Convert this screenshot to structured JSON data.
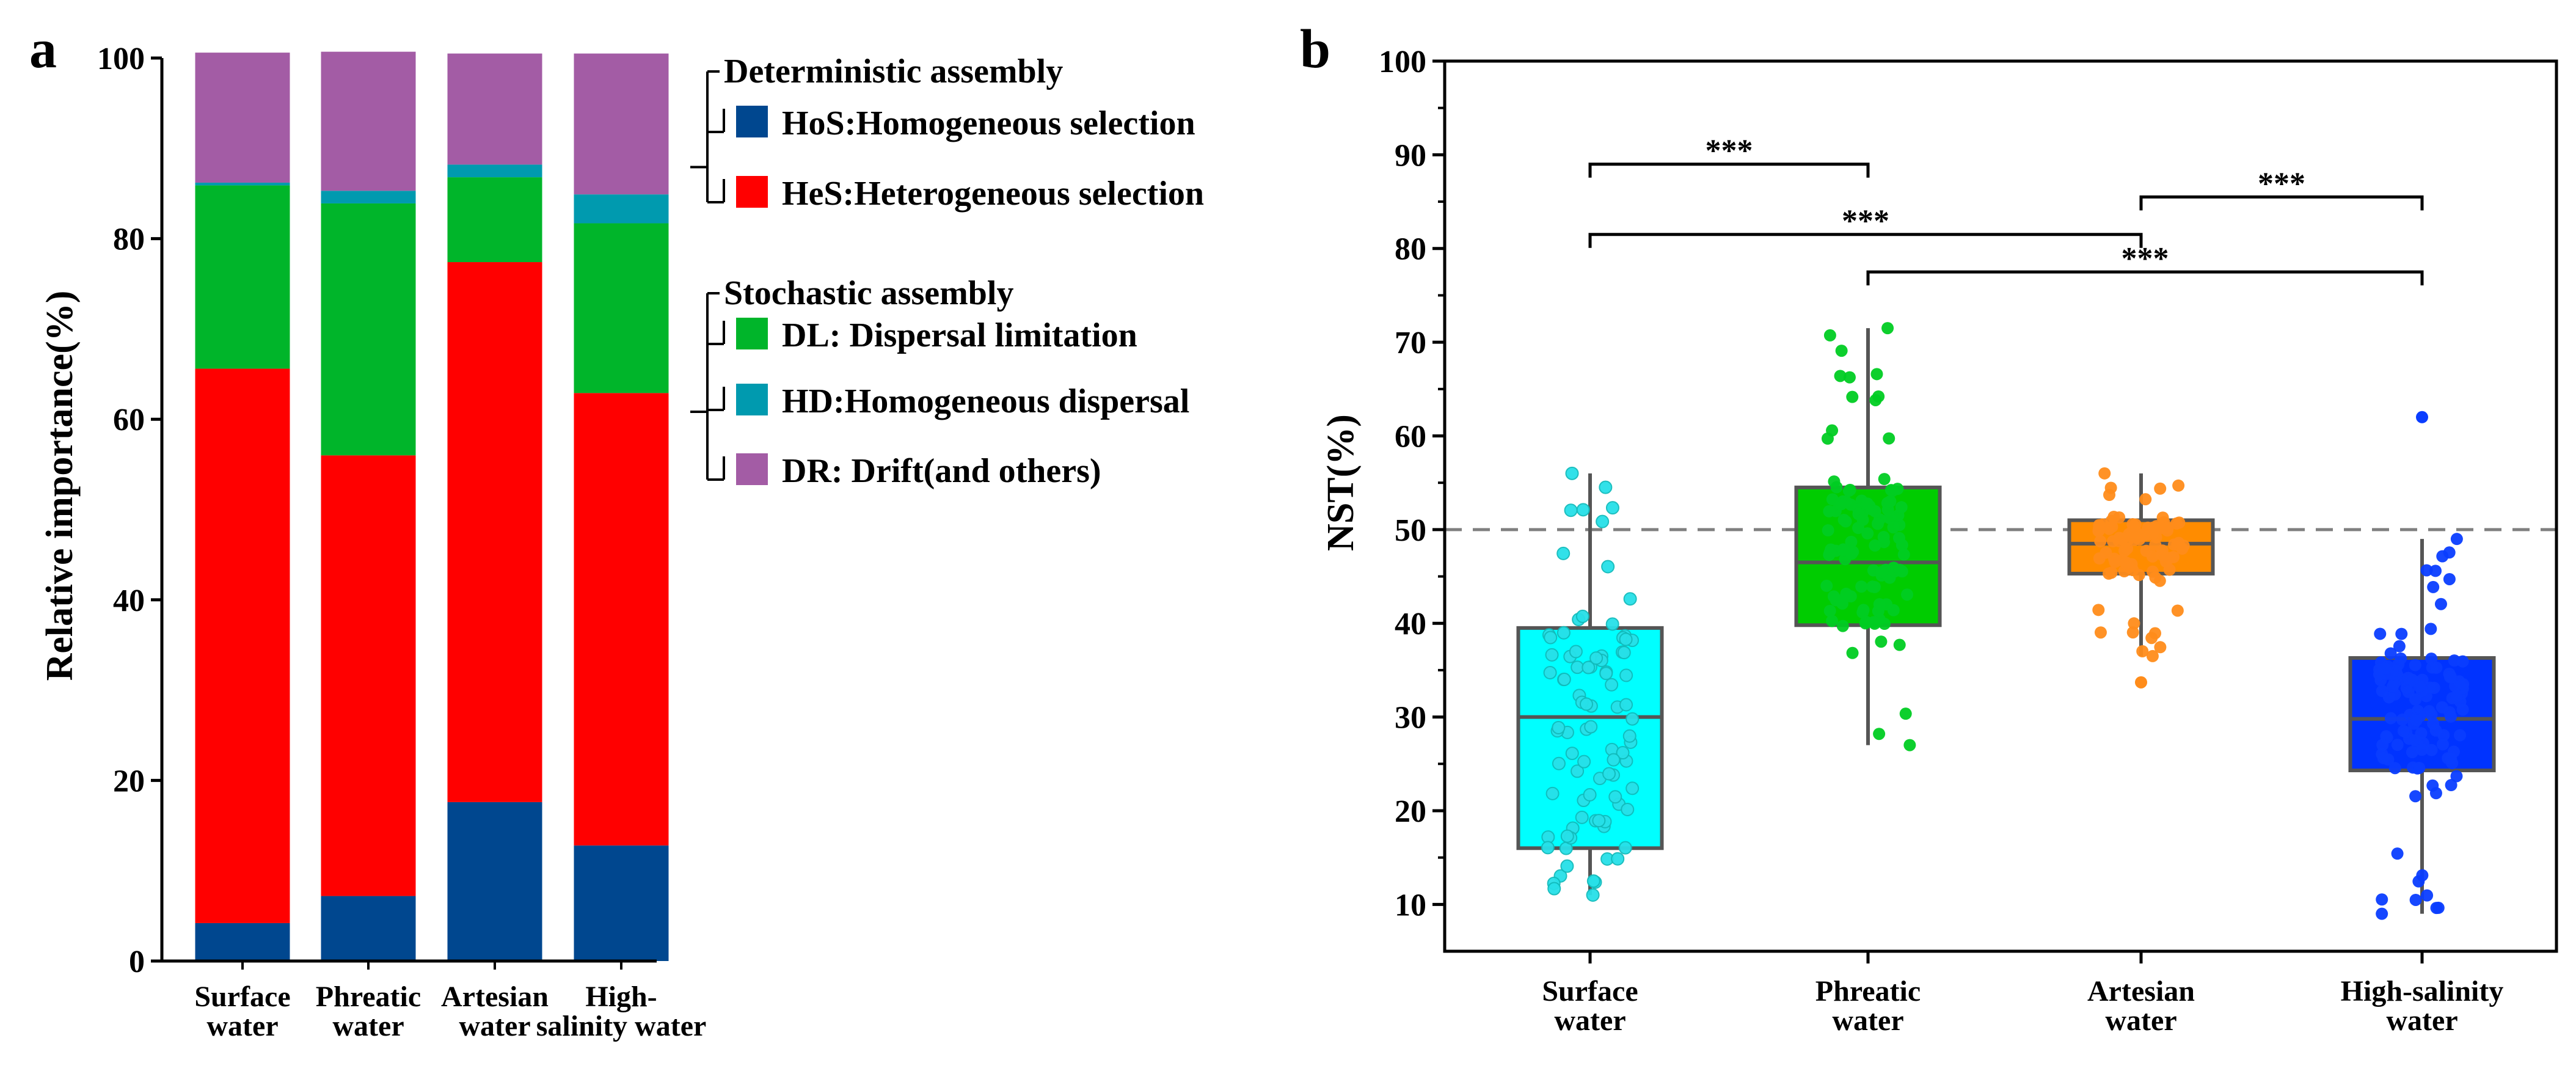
{
  "chart_data": [
    {
      "type": "bar",
      "stacked": true,
      "panel_label": "a",
      "ylabel": "Relative importance(%)",
      "ylim": [
        0,
        100
      ],
      "yticks": [
        0,
        20,
        40,
        60,
        80,
        100
      ],
      "categories": [
        {
          "lines": [
            "Surface",
            "water"
          ]
        },
        {
          "lines": [
            "Phreatic",
            "water"
          ]
        },
        {
          "lines": [
            "Artesian",
            "water"
          ]
        },
        {
          "lines": [
            "High-",
            "salinity water"
          ]
        }
      ],
      "series": [
        {
          "key": "HoS",
          "name": "HoS:Homogeneous selection",
          "color": "#00478f",
          "values": [
            4.2,
            7.2,
            17.6,
            12.8
          ]
        },
        {
          "key": "HeS",
          "name": "HeS:Heterogeneous selection",
          "color": "#ff0000",
          "values": [
            61.4,
            48.8,
            59.8,
            50.1
          ]
        },
        {
          "key": "DL",
          "name": "DL: Dispersal limitation",
          "color": "#00b52a",
          "values": [
            20.3,
            27.9,
            9.4,
            18.8
          ]
        },
        {
          "key": "HD",
          "name": "HD:Homogeneous dispersal",
          "color": "#009aaf",
          "values": [
            0.3,
            1.4,
            1.4,
            3.2
          ]
        },
        {
          "key": "DR",
          "name": "DR: Drift(and others)",
          "color": "#a35ca5",
          "values": [
            14.4,
            15.4,
            12.3,
            15.6
          ]
        }
      ],
      "legend": {
        "groups": [
          {
            "title": "Deterministic assembly",
            "items": [
              "HoS",
              "HeS"
            ]
          },
          {
            "title": "Stochastic assembly",
            "items": [
              "DL",
              "HD",
              "DR"
            ]
          }
        ],
        "position": "right"
      }
    },
    {
      "type": "box",
      "panel_label": "b",
      "ylabel": "NST(%)",
      "ylim": [
        5,
        100
      ],
      "yticks": [
        10,
        20,
        30,
        40,
        50,
        60,
        70,
        80,
        90,
        100
      ],
      "reference_line": 50,
      "categories": [
        {
          "lines": [
            "Surface",
            "water"
          ]
        },
        {
          "lines": [
            "Phreatic",
            "water"
          ]
        },
        {
          "lines": [
            "Artesian",
            "water"
          ]
        },
        {
          "lines": [
            "High-salinity",
            "water"
          ]
        }
      ],
      "boxes": [
        {
          "name": "Surface water",
          "color": "#00ffff",
          "point_color": "#27e0e8",
          "min": 11,
          "q1": 16,
          "median": 30,
          "q3": 39.5,
          "max": 56,
          "n_points": 90
        },
        {
          "name": "Phreatic water",
          "color": "#00cc00",
          "point_color": "#00cc22",
          "min": 27,
          "q1": 39.8,
          "median": 46.5,
          "q3": 54.5,
          "max": 71.5,
          "n_points": 110
        },
        {
          "name": "Artesian water",
          "color": "#ff8c00",
          "point_color": "#ff8c1a",
          "min": 36.5,
          "q1": 45.3,
          "median": 48.5,
          "q3": 51,
          "max": 56,
          "outliers": [
            33.7
          ],
          "n_points": 90
        },
        {
          "name": "High-salinity water",
          "color": "#0033ff",
          "point_color": "#0a3dff",
          "min": 9,
          "q1": 24.3,
          "median": 29.8,
          "q3": 36.3,
          "max": 49,
          "outliers": [
            62
          ],
          "n_points": 120
        }
      ],
      "significance": [
        {
          "from": 0,
          "to": 1,
          "y": 89,
          "label": "***"
        },
        {
          "from": 0,
          "to": 2,
          "y": 81.5,
          "label": "***"
        },
        {
          "from": 2,
          "to": 3,
          "y": 85.5,
          "label": "***"
        },
        {
          "from": 1,
          "to": 3,
          "y": 77.5,
          "label": "***"
        }
      ]
    }
  ]
}
